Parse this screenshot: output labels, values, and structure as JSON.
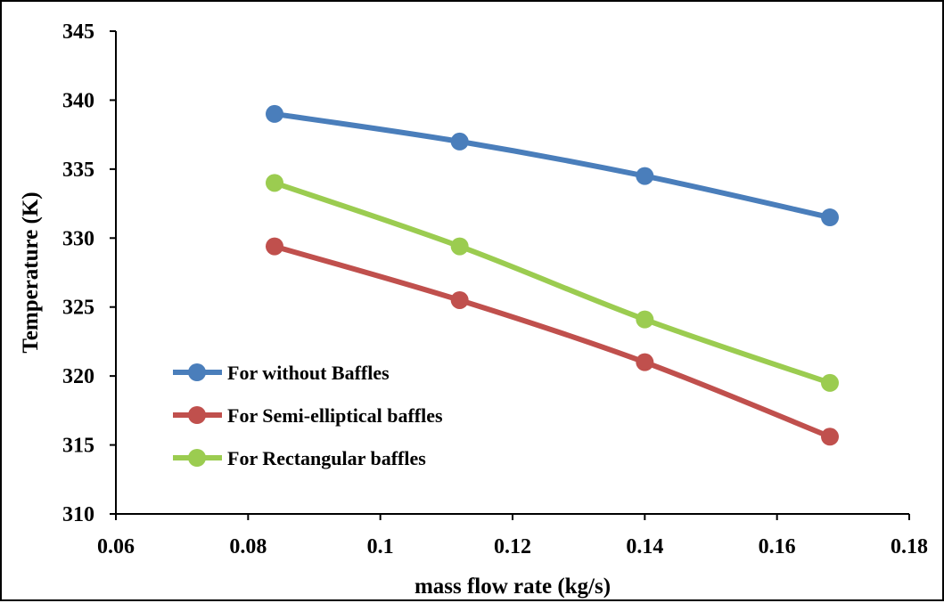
{
  "chart_data": {
    "type": "line",
    "title": "",
    "xlabel": "mass flow rate (kg/s)",
    "ylabel": "Temperature (K)",
    "xlim": [
      0.06,
      0.18
    ],
    "ylim": [
      310,
      345
    ],
    "xticks": [
      0.06,
      0.08,
      0.1,
      0.12,
      0.14,
      0.16,
      0.18
    ],
    "xtick_labels": [
      "0.06",
      "0.08",
      "0.1",
      "0.12",
      "0.14",
      "0.16",
      "0.18"
    ],
    "yticks": [
      310,
      315,
      320,
      325,
      330,
      335,
      340,
      345
    ],
    "ytick_labels": [
      "310",
      "315",
      "320",
      "325",
      "330",
      "335",
      "340",
      "345"
    ],
    "grid": false,
    "legend_position": "lower-left",
    "series": [
      {
        "name": "For without Baffles",
        "color": "#4a7ebb",
        "x": [
          0.084,
          0.112,
          0.14,
          0.168
        ],
        "y": [
          339.0,
          337.0,
          334.5,
          331.5
        ]
      },
      {
        "name": "For Semi-elliptical baffles",
        "color": "#c0504d",
        "x": [
          0.084,
          0.112,
          0.14,
          0.168
        ],
        "y": [
          329.4,
          325.5,
          321.0,
          315.6
        ]
      },
      {
        "name": "For Rectangular baffles",
        "color": "#9bcc50",
        "x": [
          0.084,
          0.112,
          0.14,
          0.168
        ],
        "y": [
          334.0,
          329.4,
          324.1,
          319.5
        ]
      }
    ]
  }
}
